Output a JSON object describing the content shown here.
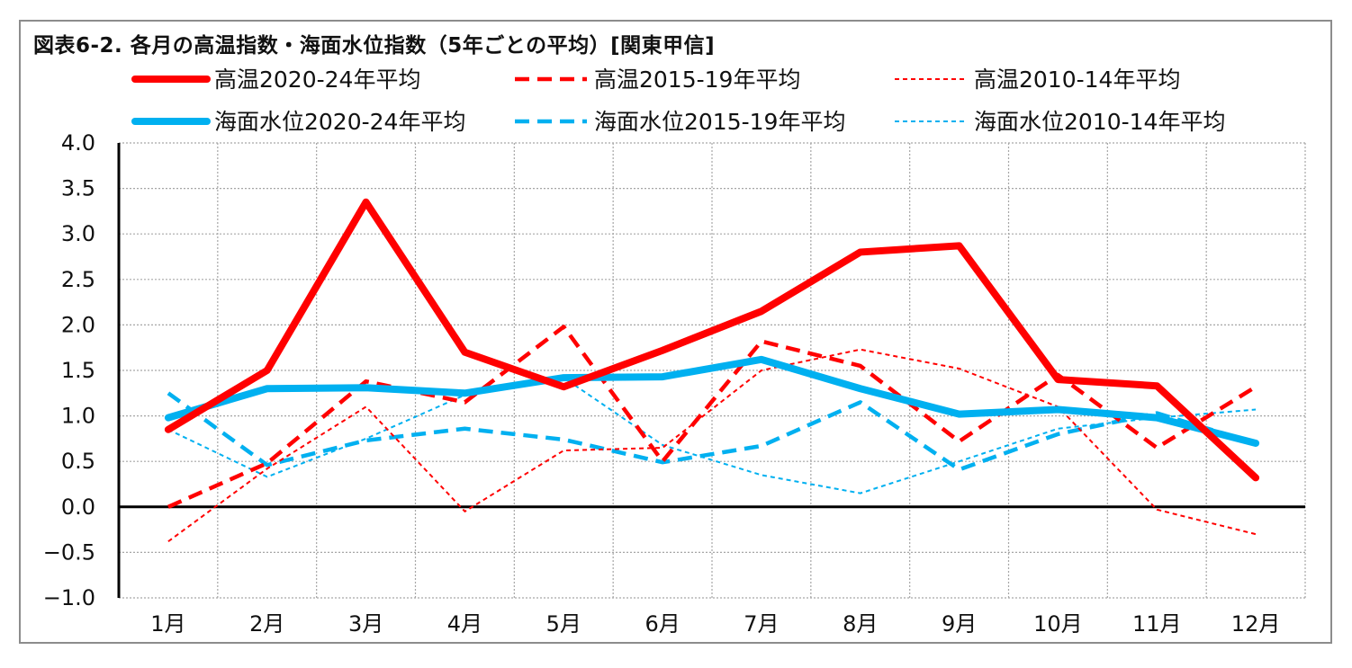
{
  "chart_data": {
    "type": "line",
    "title": "図表6-2. 各月の高温指数・海面水位指数（5年ごとの平均）[関東甲信]",
    "categories": [
      "1月",
      "2月",
      "3月",
      "4月",
      "5月",
      "6月",
      "7月",
      "8月",
      "9月",
      "10月",
      "11月",
      "12月"
    ],
    "ylim": [
      -1.0,
      4.0
    ],
    "yticks": [
      "4.0",
      "3.5",
      "3.0",
      "2.5",
      "2.0",
      "1.5",
      "1.0",
      "0.5",
      "0.0",
      "−0.5",
      "−1.0"
    ],
    "ytick_values": [
      4.0,
      3.5,
      3.0,
      2.5,
      2.0,
      1.5,
      1.0,
      0.5,
      0.0,
      -0.5,
      -1.0
    ],
    "grid": true,
    "legend_position": "top",
    "series": [
      {
        "name": "高温2020-24年平均",
        "color": "#ff0000",
        "style": "solid-thick",
        "values": [
          0.85,
          1.5,
          3.35,
          1.7,
          1.32,
          1.72,
          2.15,
          2.8,
          2.87,
          1.4,
          1.33,
          0.32
        ]
      },
      {
        "name": "高温2015-19年平均",
        "color": "#ff0000",
        "style": "dash-medium",
        "values": [
          0.0,
          0.48,
          1.38,
          1.15,
          1.98,
          0.5,
          1.82,
          1.55,
          0.72,
          1.45,
          0.65,
          1.32
        ]
      },
      {
        "name": "高温2010-14年平均",
        "color": "#ff0000",
        "style": "dot-thin",
        "values": [
          -0.38,
          0.42,
          1.1,
          -0.05,
          0.62,
          0.65,
          1.5,
          1.73,
          1.52,
          1.1,
          -0.03,
          -0.3
        ]
      },
      {
        "name": "海面水位2020-24年平均",
        "color": "#00b0f0",
        "style": "solid-thick",
        "values": [
          0.98,
          1.3,
          1.31,
          1.25,
          1.42,
          1.43,
          1.62,
          1.3,
          1.02,
          1.07,
          0.98,
          0.7
        ]
      },
      {
        "name": "海面水位2015-19年平均",
        "color": "#00b0f0",
        "style": "dash-medium",
        "values": [
          1.25,
          0.46,
          0.73,
          0.86,
          0.74,
          0.49,
          0.67,
          1.15,
          0.41,
          0.8,
          1.03,
          0.7
        ]
      },
      {
        "name": "海面水位2010-14年平均",
        "color": "#00b0f0",
        "style": "dot-thin",
        "values": [
          0.85,
          0.33,
          0.75,
          1.23,
          1.42,
          0.68,
          0.35,
          0.15,
          0.5,
          0.86,
          0.98,
          1.07
        ]
      }
    ]
  }
}
